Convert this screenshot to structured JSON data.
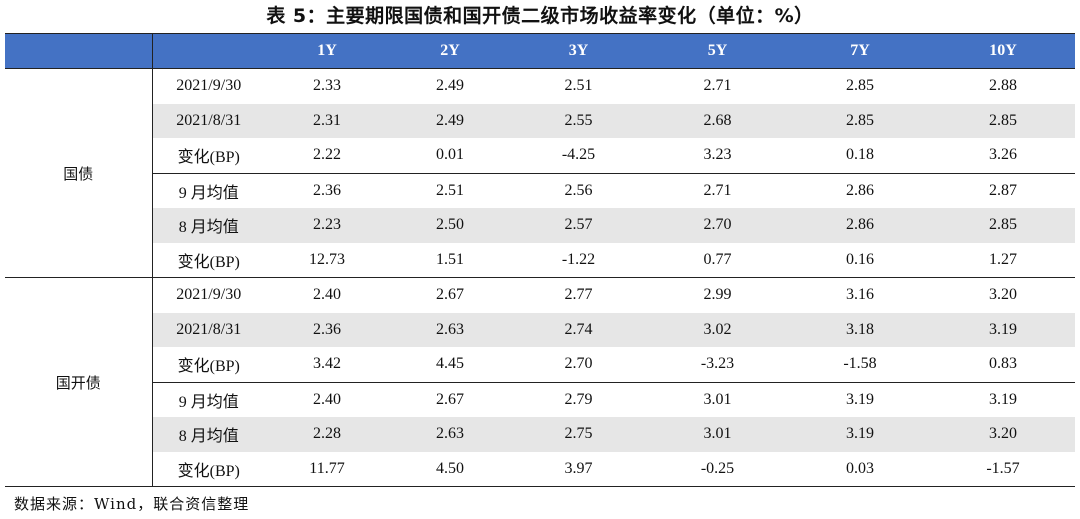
{
  "title": "表 5：主要期限国债和国开债二级市场收益率变化（单位：%）",
  "header": [
    "",
    "",
    "1Y",
    "2Y",
    "3Y",
    "5Y",
    "7Y",
    "10Y"
  ],
  "groups": [
    {
      "name": "国债",
      "rows": [
        {
          "label": "2021/9/30",
          "values": [
            "2.33",
            "2.49",
            "2.51",
            "2.71",
            "2.85",
            "2.88"
          ]
        },
        {
          "label": "2021/8/31",
          "values": [
            "2.31",
            "2.49",
            "2.55",
            "2.68",
            "2.85",
            "2.85"
          ]
        },
        {
          "label": "变化(BP)",
          "values": [
            "2.22",
            "0.01",
            "-4.25",
            "3.23",
            "0.18",
            "3.26"
          ]
        },
        {
          "label": "9 月均值",
          "values": [
            "2.36",
            "2.51",
            "2.56",
            "2.71",
            "2.86",
            "2.87"
          ]
        },
        {
          "label": "8 月均值",
          "values": [
            "2.23",
            "2.50",
            "2.57",
            "2.70",
            "2.86",
            "2.85"
          ]
        },
        {
          "label": "变化(BP)",
          "values": [
            "12.73",
            "1.51",
            "-1.22",
            "0.77",
            "0.16",
            "1.27"
          ]
        }
      ]
    },
    {
      "name": "国开债",
      "rows": [
        {
          "label": "2021/9/30",
          "values": [
            "2.40",
            "2.67",
            "2.77",
            "2.99",
            "3.16",
            "3.20"
          ]
        },
        {
          "label": "2021/8/31",
          "values": [
            "2.36",
            "2.63",
            "2.74",
            "3.02",
            "3.18",
            "3.19"
          ]
        },
        {
          "label": "变化(BP)",
          "values": [
            "3.42",
            "4.45",
            "2.70",
            "-3.23",
            "-1.58",
            "0.83"
          ]
        },
        {
          "label": "9 月均值",
          "values": [
            "2.40",
            "2.67",
            "2.79",
            "3.01",
            "3.19",
            "3.19"
          ]
        },
        {
          "label": "8 月均值",
          "values": [
            "2.28",
            "2.63",
            "2.75",
            "3.01",
            "3.19",
            "3.20"
          ]
        },
        {
          "label": "变化(BP)",
          "values": [
            "11.77",
            "4.50",
            "3.97",
            "-0.25",
            "0.03",
            "-1.57"
          ]
        }
      ]
    }
  ],
  "colors": {
    "header_bg": "#4472C4",
    "stripe": "#E6E6E6"
  },
  "source": "数据来源：Wind，联合资信整理"
}
